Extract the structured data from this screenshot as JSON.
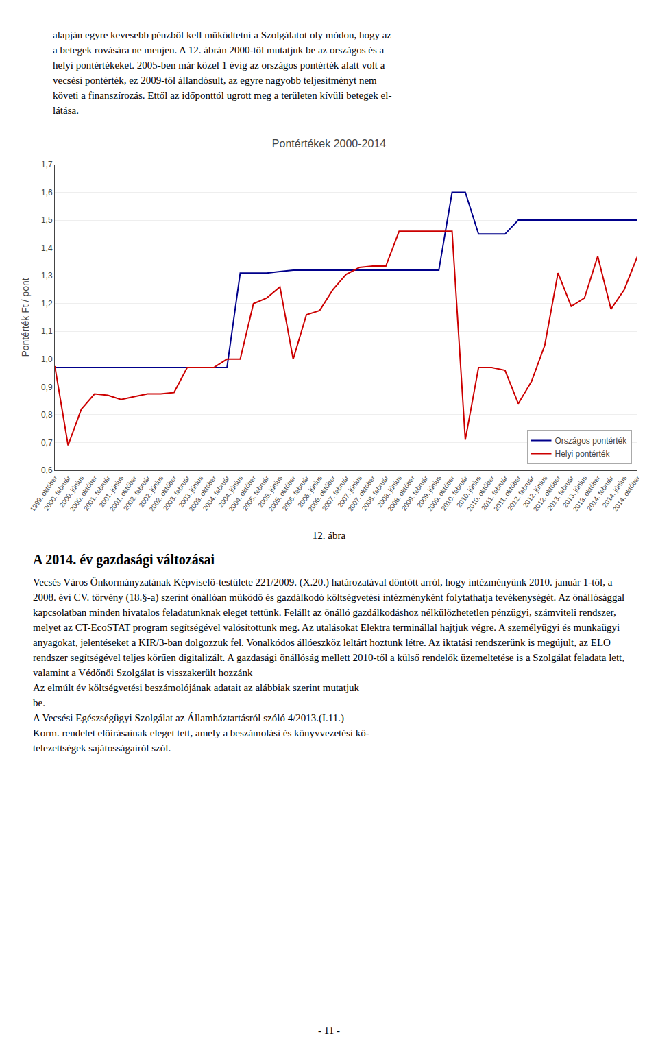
{
  "chart_data": {
    "type": "line",
    "title": "Pontértékek 2000-2014",
    "ylabel": "Pontérték Ft / pont",
    "categories": [
      "1999. október",
      "2000. február",
      "2000. június",
      "2000. október",
      "2001. február",
      "2001. június",
      "2001. október",
      "2002. február",
      "2002. június",
      "2002. október",
      "2003. február",
      "2003. június",
      "2003. október",
      "2004. február",
      "2004. június",
      "2004. október",
      "2005. február",
      "2005. június",
      "2005. október",
      "2006. február",
      "2006. június",
      "2006. október",
      "2007. február",
      "2007. június",
      "2007. október",
      "2008. február",
      "2008. június",
      "2008. október",
      "2009. február",
      "2009. június",
      "2009. október",
      "2010. február",
      "2010. június",
      "2010. október",
      "2011. február",
      "2011. október",
      "2012. február",
      "2012. június",
      "2012. október",
      "2013. február",
      "2013. június",
      "2013. október",
      "2014. február",
      "2014. június",
      "2014. október"
    ],
    "series": [
      {
        "name": "Országos pontérték",
        "color": "#00008B",
        "values": [
          0.97,
          0.97,
          0.97,
          0.97,
          0.97,
          0.97,
          0.97,
          0.97,
          0.97,
          0.97,
          0.97,
          0.97,
          0.97,
          0.97,
          1.31,
          1.31,
          1.31,
          1.315,
          1.32,
          1.32,
          1.32,
          1.32,
          1.32,
          1.32,
          1.32,
          1.32,
          1.32,
          1.32,
          1.32,
          1.32,
          1.6,
          1.6,
          1.45,
          1.45,
          1.45,
          1.5,
          1.5,
          1.5,
          1.5,
          1.5,
          1.5,
          1.5,
          1.5,
          1.5,
          1.5
        ]
      },
      {
        "name": "Helyi pontérték",
        "color": "#CC0000",
        "values": [
          0.975,
          0.69,
          0.82,
          0.875,
          0.87,
          0.855,
          0.865,
          0.875,
          0.875,
          0.88,
          0.97,
          0.97,
          0.97,
          1.0,
          1.0,
          1.2,
          1.22,
          1.26,
          1.0,
          1.16,
          1.175,
          1.25,
          1.305,
          1.33,
          1.335,
          1.335,
          1.46,
          1.46,
          1.46,
          1.46,
          1.46,
          0.71,
          0.97,
          0.97,
          0.96,
          0.84,
          0.92,
          1.05,
          1.31,
          1.19,
          1.22,
          1.37,
          1.18,
          1.25,
          1.37
        ]
      }
    ],
    "ylim": [
      0.6,
      1.7
    ],
    "yticks": [
      {
        "value": 0.6,
        "label": "0,6"
      },
      {
        "value": 0.7,
        "label": "0,7"
      },
      {
        "value": 0.8,
        "label": "0,8"
      },
      {
        "value": 0.9,
        "label": "0,9"
      },
      {
        "value": 1.0,
        "label": "1,0"
      },
      {
        "value": 1.1,
        "label": "1,1"
      },
      {
        "value": 1.2,
        "label": "1,2"
      },
      {
        "value": 1.3,
        "label": "1,3"
      },
      {
        "value": 1.4,
        "label": "1,4"
      },
      {
        "value": 1.5,
        "label": "1,5"
      },
      {
        "value": 1.6,
        "label": "1,6"
      },
      {
        "value": 1.7,
        "label": "1,7"
      }
    ],
    "grid": true,
    "legend": "lower right",
    "annotations": [
      "alapján egyre kevesebb pénzből kell működtetni a Szolgálatot oly módon, hogy az",
      "a betegek rovására ne menjen. A 12. ábrán 2000-től mutatjuk be az országos és a",
      "helyi pontértékeket. 2005-ben már közel 1 évig az országos pontérték alatt volt a",
      "vecsési pontérték, ez 2009-től állandósult, az egyre nagyobb teljesítményt nem",
      "követi a finanszírozás. Ettől az időponttól ugrott meg a területen kívüli betegek el-",
      "látása.",
      "12. ábra",
      "A 2014. év gazdasági változásai",
      "Vecsés Város Önkormányzatának Képviselő-testülete 221/2009. (X.20.) határozatával döntött arról, hogy intézményünk 2010. január 1-től, a 2008. évi CV. törvény (18.§-a) szerint önállóan működő és gazdálkodó költségvetési intézményként folytathatja tevékenységét. Az önállósággal kapcsolatban minden hivatalos feladatunknak eleget tettünk. Felállt az önálló gazdálkodáshoz nélkülözhetetlen pénzügyi, számviteli rendszer, melyet az CT-EcoSTAT program segítségével valósítottunk meg. Az utalásokat Elektra terminállal hajtjuk végre. A személyügyi és munkaügyi anyagokat, jelentéseket a KIR/3-ban dolgozzuk fel. Vonalkódos állóeszköz leltárt hoztunk létre. Az iktatási rendszerünk is megújult, az ELO rendszer segítségével teljes körűen digitalizált. A gazdasági önállóság mellett 2010-től a külső rendelők üzemeltetése is a Szolgálat feladata lett, valamint a Védőnői Szolgálat is visszakerült hozzánk",
      "Az elmúlt év költségvetési beszámolójának adatait az alábbiak szerint mutatjuk",
      "be.",
      "A Vecsési Egészségügyi Szolgálat az Államháztartásról szóló 4/2013.(I.11.)",
      "Korm. rendelet előírásainak eleget tett, amely a beszámolási és könyvvezetési kö-",
      "telezettségek sajátosságairól szól.",
      "- 11 -"
    ]
  }
}
